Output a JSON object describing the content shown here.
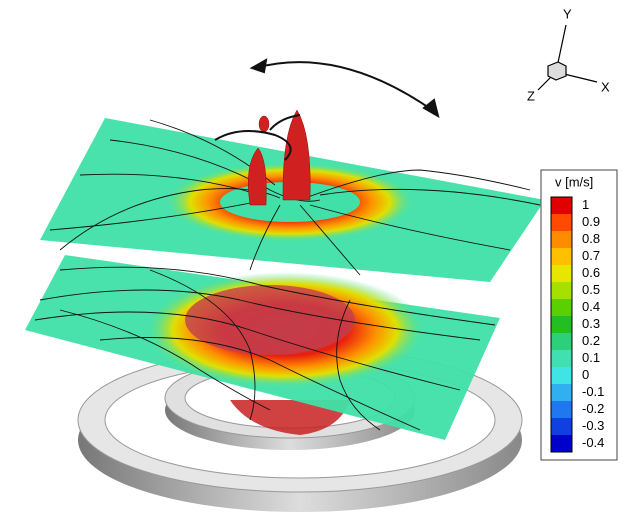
{
  "axes_triad": {
    "y_label": "Y",
    "x_label": "X",
    "z_label": "Z"
  },
  "colorbar": {
    "title": "v [m/s]",
    "levels": [
      1,
      0.9,
      0.8,
      0.7,
      0.6,
      0.5,
      0.4,
      0.3,
      0.2,
      0.1,
      0,
      -0.1,
      -0.2,
      -0.3,
      -0.4
    ],
    "colors": [
      "#e00000",
      "#ff4a00",
      "#ff8c00",
      "#ffc000",
      "#e6e600",
      "#a6e000",
      "#5ad000",
      "#22bf22",
      "#2ccf7a",
      "#40e0b0",
      "#40e4e4",
      "#30b0f0",
      "#2078f0",
      "#1040e0",
      "#0000c8"
    ]
  }
}
